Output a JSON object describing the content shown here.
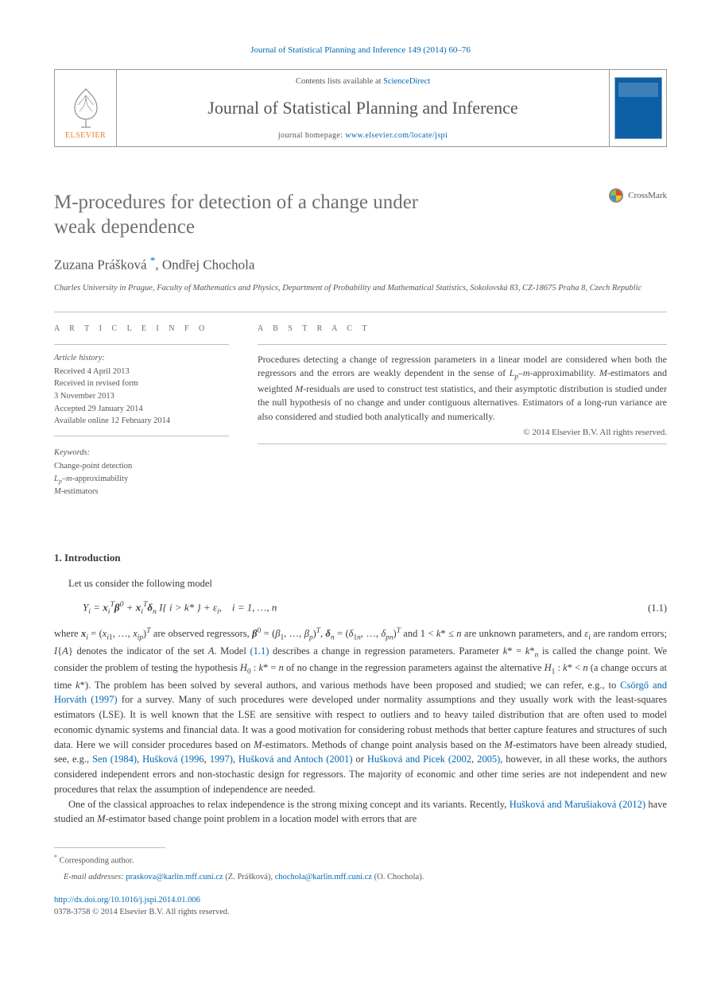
{
  "colors": {
    "link": "#0068b3",
    "text": "#3a3a3a",
    "muted": "#555555",
    "rule": "#bfbfbf",
    "elsevier_orange": "#ed7d2b",
    "cover_blue": "#0d5fa6"
  },
  "typography": {
    "body_family": "Georgia, 'Times New Roman', serif",
    "title_size_pt": 25,
    "journal_header_size_pt": 22,
    "body_size_pt": 12.5
  },
  "citation_top": "Journal of Statistical Planning and Inference 149 (2014) 60–76",
  "header": {
    "contents_prefix": "Contents lists available at ",
    "contents_link": "ScienceDirect",
    "journal_title": "Journal of Statistical Planning and Inference",
    "homepage_prefix": "journal homepage: ",
    "homepage_link": "www.elsevier.com/locate/jspi",
    "publisher_word": "ELSEVIER"
  },
  "crossmark_label": "CrossMark",
  "article_title_l1": "M-procedures for detection of a change under",
  "article_title_l2": "weak dependence",
  "authors_html": "Zuzana Prášková <sup class=\"star\">*</sup>, Ondřej Chochola",
  "affiliation": "Charles University in Prague, Faculty of Mathematics and Physics, Department of Probability and Mathematical Statistics, Sokolovská 83, CZ-18675 Praha 8, Czech Republic",
  "info_heading_left": "A R T I C L E  I N F O",
  "info_heading_right": "A B S T R A C T",
  "history_heading": "Article history:",
  "history": [
    "Received 4 April 2013",
    "Received in revised form",
    "3 November 2013",
    "Accepted 29 January 2014",
    "Available online 12 February 2014"
  ],
  "keywords_heading": "Keywords:",
  "keywords": [
    "Change-point detection",
    "L_p–m-approximability",
    "M-estimators"
  ],
  "abstract": "Procedures detecting a change of regression parameters in a linear model are considered when both the regressors and the errors are weakly dependent in the sense of L_p–m-approximability. M-estimators and weighted M-residuals are used to construct test statistics, and their asymptotic distribution is studied under the null hypothesis of no change and under contiguous alternatives. Estimators of a long-run variance are also considered and studied both analytically and numerically.",
  "abstract_copyright": "© 2014 Elsevier B.V. All rights reserved.",
  "section1_heading": "1.  Introduction",
  "intro_line": "Let us consider the following model",
  "equation_1_1": "Y_i = x_i^T β^0 + x_i^T δ_n I{i > k*} + ε_i,    i = 1, …, n",
  "equation_1_1_num": "(1.1)",
  "para_after_eq_html": "where <b><i>x</i></b><sub><i>i</i></sub> = (<i>x</i><sub><i>i</i>1</sub>, …, <i>x</i><sub><i>ip</i></sub>)<sup><i>T</i></sup> are observed regressors, <b><i>β</i></b><sup>0</sup> = (<i>β</i><sub>1</sub>, …, <i>β</i><sub><i>p</i></sub>)<sup><i>T</i></sup>,  <b><i>δ</i></b><sub><i>n</i></sub> = (<i>δ</i><sub>1<i>n</i></sub>, …, <i>δ</i><sub><i>pn</i></sub>)<sup><i>T</i></sup> and 1 &lt; <i>k</i>* ≤ <i>n</i> are unknown parameters, and <i>ε</i><sub><i>i</i></sub> are random errors; <i>I</i>{<i>A</i>} denotes the indicator of the set <i>A</i>. Model <a class=\"link\" href=\"#\">(1.1)</a> describes a change in regression parameters. Parameter <i>k</i>* = <i>k</i>*<sub><i>n</i></sub> is called the change point. We consider the problem of testing the hypothesis <i>H</i><sub>0</sub> : <i>k</i>* = <i>n</i> of no change in the regression parameters against the alternative <i>H</i><sub>1</sub> : <i>k</i>* &lt; <i>n</i> (a change occurs at time <i>k</i>*). The problem has been solved by several authors, and various methods have been proposed and studied; we can refer, e.g., to <a class=\"link\" href=\"#\">Csörgő and Horváth (1997)</a> for a survey. Many of such procedures were developed under normality assumptions and they usually work with the least-squares estimators (LSE). It is well known that the LSE are sensitive with respect to outliers and to heavy tailed distribution that are often used to model economic dynamic systems and financial data. It was a good motivation for considering robust methods that better capture features and structures of such data. Here we will consider procedures based on <i>M</i>-estimators. Methods of change point analysis based on the <i>M</i>-estimators have been already studied, see, e.g., <a class=\"link\" href=\"#\">Sen (1984)</a>, <a class=\"link\" href=\"#\">Hušková (1996</a>, <a class=\"link\" href=\"#\">1997)</a>, <a class=\"link\" href=\"#\">Hušková and Antoch (2001)</a> or <a class=\"link\" href=\"#\">Hušková and Picek (2002</a>, <a class=\"link\" href=\"#\">2005)</a>, however, in all these works, the authors considered independent errors and non-stochastic design for regressors. The majority of economic and other time series are not independent and new procedures that relax the assumption of independence are needed.",
  "para2_html": "One of the classical approaches to relax independence is the strong mixing concept and its variants. Recently, <a class=\"link\" href=\"#\">Hušková and Marušiaková (2012)</a> have studied an <i>M</i>-estimator based change point problem in a location model with errors that are",
  "footnote_corr": "Corresponding author.",
  "footnote_email_label": "E-mail addresses:",
  "footnote_emails_html": "<a href=\"#\">praskova@karlin.mff.cuni.cz</a> (Z. Prášková), <a href=\"#\">chochola@karlin.mff.cuni.cz</a> (O. Chochola).",
  "doi": "http://dx.doi.org/10.1016/j.jspi.2014.01.006",
  "issn_line": "0378-3758 © 2014 Elsevier B.V. All rights reserved."
}
